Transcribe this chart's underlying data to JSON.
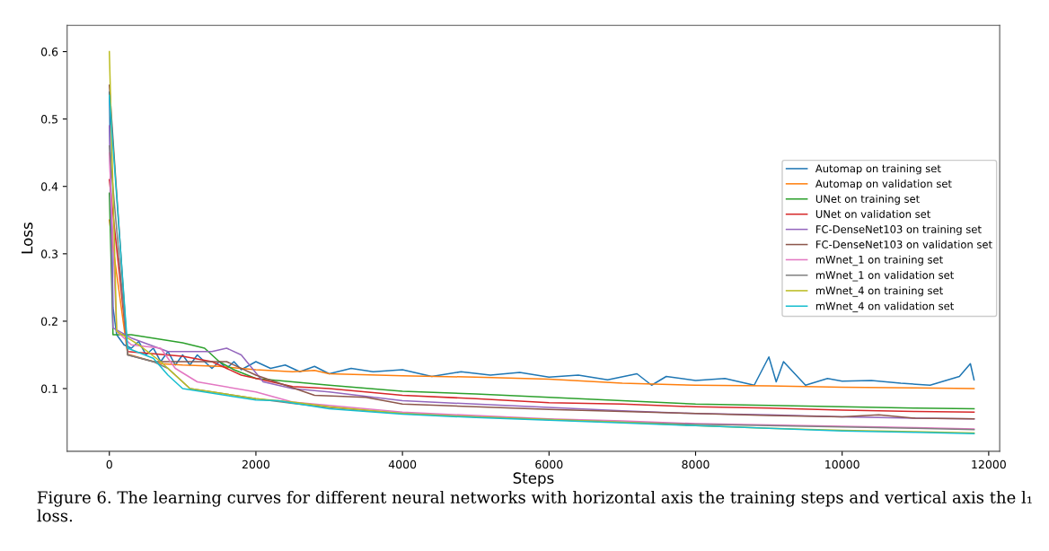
{
  "chart_data": {
    "type": "line",
    "xlabel": "Steps",
    "ylabel": "Loss",
    "xlim": [
      -576,
      12150
    ],
    "ylim": [
      0.007,
      0.639
    ],
    "xticks": [
      0,
      2000,
      4000,
      6000,
      8000,
      10000,
      12000
    ],
    "yticks": [
      0.1,
      0.2,
      0.3,
      0.4,
      0.5,
      0.6
    ],
    "grid": false,
    "legend": "right",
    "annotations": [
      "Figure 6. The learning curves for different neural networks with horizontal axis the training steps and vertical axis the l₁ loss."
    ],
    "series": [
      {
        "name": "Automap on training set",
        "color": "#1f77b4",
        "x": [
          0,
          50,
          100,
          200,
          300,
          400,
          500,
          600,
          700,
          800,
          900,
          1000,
          1100,
          1200,
          1300,
          1400,
          1500,
          1600,
          1700,
          1800,
          2000,
          2200,
          2400,
          2600,
          2800,
          3000,
          3300,
          3600,
          4000,
          4400,
          4800,
          5200,
          5600,
          6000,
          6400,
          6800,
          7200,
          7400,
          7600,
          8000,
          8400,
          8800,
          9000,
          9100,
          9200,
          9500,
          9800,
          10000,
          10400,
          10800,
          11200,
          11600,
          11750,
          11800
        ],
        "values": [
          0.54,
          0.22,
          0.18,
          0.165,
          0.16,
          0.17,
          0.15,
          0.16,
          0.14,
          0.155,
          0.135,
          0.15,
          0.135,
          0.15,
          0.14,
          0.13,
          0.14,
          0.13,
          0.14,
          0.128,
          0.14,
          0.13,
          0.135,
          0.125,
          0.133,
          0.122,
          0.13,
          0.125,
          0.128,
          0.118,
          0.125,
          0.12,
          0.124,
          0.117,
          0.12,
          0.113,
          0.122,
          0.105,
          0.118,
          0.112,
          0.115,
          0.105,
          0.147,
          0.11,
          0.14,
          0.105,
          0.115,
          0.111,
          0.112,
          0.108,
          0.105,
          0.118,
          0.137,
          0.113
        ]
      },
      {
        "name": "Automap on validation set",
        "color": "#ff7f0e",
        "x": [
          0,
          250,
          700,
          1000,
          1500,
          2000,
          2500,
          2800,
          3000,
          4000,
          5000,
          6000,
          7000,
          8000,
          9000,
          10000,
          11000,
          11800
        ],
        "values": [
          0.35,
          0.151,
          0.137,
          0.135,
          0.133,
          0.128,
          0.125,
          0.127,
          0.122,
          0.119,
          0.117,
          0.114,
          0.108,
          0.105,
          0.104,
          0.102,
          0.101,
          0.1
        ]
      },
      {
        "name": "UNet on training set",
        "color": "#2ca02c",
        "x": [
          0,
          50,
          300,
          1000,
          1300,
          1500,
          1700,
          2000,
          2500,
          3000,
          4000,
          5000,
          6000,
          7000,
          8000,
          9000,
          10000,
          11000,
          11800
        ],
        "values": [
          0.39,
          0.18,
          0.18,
          0.168,
          0.16,
          0.14,
          0.128,
          0.115,
          0.11,
          0.105,
          0.096,
          0.092,
          0.087,
          0.082,
          0.077,
          0.075,
          0.073,
          0.071,
          0.07
        ]
      },
      {
        "name": "UNet on validation set",
        "color": "#d62728",
        "x": [
          0,
          250,
          1000,
          1400,
          1800,
          2500,
          3000,
          4000,
          5000,
          6000,
          7000,
          8000,
          9000,
          10000,
          11000,
          11800
        ],
        "values": [
          0.41,
          0.155,
          0.148,
          0.14,
          0.12,
          0.103,
          0.1,
          0.09,
          0.085,
          0.079,
          0.077,
          0.073,
          0.071,
          0.068,
          0.066,
          0.065
        ]
      },
      {
        "name": "FC-DenseNet103 on training set",
        "color": "#9467bd",
        "x": [
          0,
          50,
          300,
          800,
          1400,
          1600,
          1800,
          2100,
          2500,
          3000,
          4000,
          5000,
          6000,
          7000,
          8000,
          9000,
          10000,
          11000,
          11800
        ],
        "values": [
          0.49,
          0.19,
          0.175,
          0.155,
          0.155,
          0.16,
          0.15,
          0.11,
          0.1,
          0.095,
          0.082,
          0.077,
          0.072,
          0.067,
          0.063,
          0.061,
          0.058,
          0.056,
          0.055
        ]
      },
      {
        "name": "FC-DenseNet103 on validation set",
        "color": "#8c564b",
        "x": [
          0,
          250,
          600,
          1000,
          1600,
          2000,
          2800,
          3500,
          4000,
          5000,
          6000,
          7000,
          8000,
          9000,
          10000,
          10500,
          11000,
          11800
        ],
        "values": [
          0.55,
          0.15,
          0.14,
          0.14,
          0.14,
          0.12,
          0.09,
          0.087,
          0.077,
          0.073,
          0.069,
          0.066,
          0.063,
          0.06,
          0.058,
          0.061,
          0.056,
          0.055
        ]
      },
      {
        "name": "mWnet_1 on training set",
        "color": "#e377c2",
        "x": [
          0,
          100,
          300,
          700,
          900,
          1200,
          2000,
          2500,
          3000,
          4000,
          5000,
          6000,
          7000,
          8000,
          9000,
          10000,
          11000,
          11800
        ],
        "values": [
          0.45,
          0.185,
          0.165,
          0.16,
          0.13,
          0.11,
          0.095,
          0.08,
          0.075,
          0.065,
          0.06,
          0.055,
          0.052,
          0.048,
          0.046,
          0.044,
          0.042,
          0.04
        ]
      },
      {
        "name": "mWnet_1 on validation set",
        "color": "#7f7f7f",
        "x": [
          0,
          250,
          600,
          800,
          1100,
          2000,
          2500,
          3000,
          4000,
          5000,
          6000,
          7000,
          8000,
          9000,
          10000,
          11000,
          11800
        ],
        "values": [
          0.46,
          0.15,
          0.14,
          0.13,
          0.1,
          0.085,
          0.078,
          0.072,
          0.063,
          0.058,
          0.054,
          0.05,
          0.047,
          0.045,
          0.043,
          0.041,
          0.039
        ]
      },
      {
        "name": "mWnet_4 on training set",
        "color": "#bcbd22",
        "x": [
          0,
          100,
          400,
          700,
          900,
          1100,
          2000,
          2500,
          3000,
          4000,
          5000,
          6000,
          7000,
          8000,
          9000,
          10000,
          11000,
          11800
        ],
        "values": [
          0.6,
          0.185,
          0.165,
          0.14,
          0.12,
          0.1,
          0.085,
          0.08,
          0.073,
          0.063,
          0.058,
          0.054,
          0.05,
          0.045,
          0.041,
          0.038,
          0.036,
          0.034
        ]
      },
      {
        "name": "mWnet_4 on validation set",
        "color": "#17becf",
        "x": [
          0,
          250,
          600,
          800,
          1000,
          2000,
          2300,
          3000,
          4000,
          5000,
          6000,
          7000,
          8000,
          9000,
          10000,
          11000,
          11800
        ],
        "values": [
          0.535,
          0.16,
          0.145,
          0.12,
          0.1,
          0.083,
          0.082,
          0.07,
          0.062,
          0.057,
          0.053,
          0.049,
          0.045,
          0.041,
          0.037,
          0.035,
          0.033
        ]
      }
    ]
  }
}
